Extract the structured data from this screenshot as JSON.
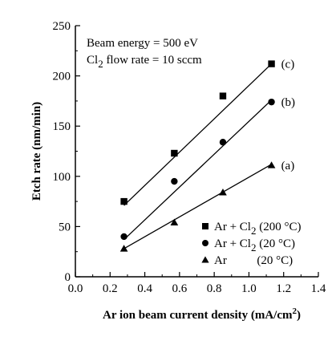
{
  "chart_data": {
    "type": "scatter",
    "xlabel": "Ar ion beam current density (mA/cm",
    "xlabel_sup": "2",
    "xlabel_close": ")",
    "ylabel": "Etch rate (nm/min)",
    "xlim": [
      0.0,
      1.4
    ],
    "ylim": [
      0,
      250
    ],
    "x_ticks": [
      "0.0",
      "0.2",
      "0.4",
      "0.6",
      "0.8",
      "1.0",
      "1.2",
      "1.4"
    ],
    "y_ticks": [
      "0",
      "50",
      "100",
      "150",
      "200",
      "250"
    ],
    "grid": false,
    "annotation_lines": [
      {
        "text": "Beam energy = 500 eV"
      },
      {
        "text_a": "Cl",
        "sub": "2",
        "text_b": " flow rate = 10 sccm"
      }
    ],
    "legend_position": "lower-right",
    "series": [
      {
        "label": "(c)",
        "legend": {
          "a": "Ar + Cl",
          "sub": "2",
          "b": " (200 °C)"
        },
        "marker": "square",
        "x": [
          0.28,
          0.57,
          0.85,
          1.13
        ],
        "y": [
          75,
          123,
          180,
          212
        ],
        "fit": [
          [
            0.28,
            71
          ],
          [
            1.13,
            212
          ]
        ]
      },
      {
        "label": "(b)",
        "legend": {
          "a": "Ar + Cl",
          "sub": "2",
          "b": "  (20 °C)"
        },
        "marker": "circle",
        "x": [
          0.28,
          0.57,
          0.85,
          1.13
        ],
        "y": [
          40,
          95,
          134,
          174
        ],
        "fit": [
          [
            0.28,
            37
          ],
          [
            1.13,
            176
          ]
        ]
      },
      {
        "label": "(a)",
        "legend": {
          "a": "Ar",
          "sub": "",
          "b": "          (20 °C)"
        },
        "marker": "triangle",
        "x": [
          0.28,
          0.57,
          0.85,
          1.13
        ],
        "y": [
          28,
          54,
          84,
          111
        ],
        "fit": [
          [
            0.28,
            28
          ],
          [
            1.13,
            112
          ]
        ]
      }
    ]
  }
}
